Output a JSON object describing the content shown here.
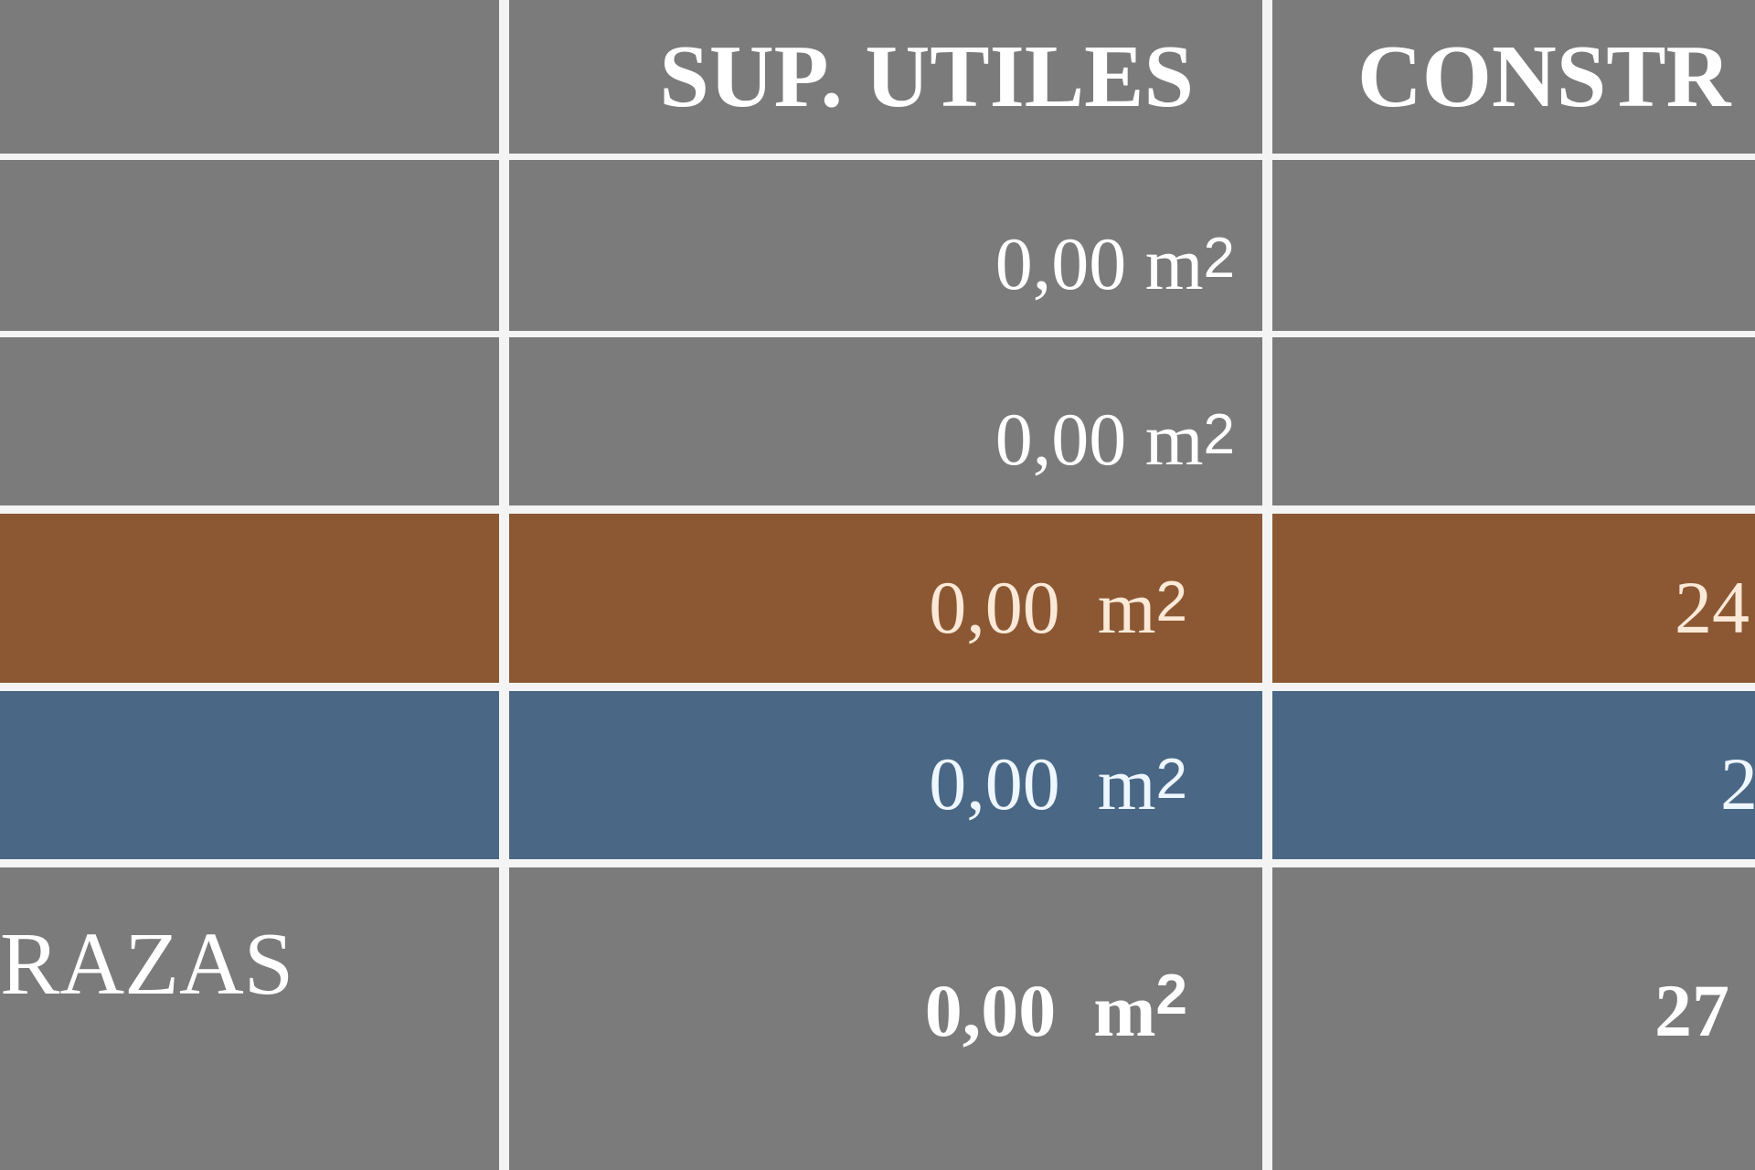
{
  "colors": {
    "gray": "#7b7b7b",
    "brown": "#8c5833",
    "blue": "#4a6885"
  },
  "table": {
    "headers": [
      "",
      "SUP. UTILES",
      "CONSTR"
    ],
    "rows": [
      {
        "label": "",
        "util": "0,00 m",
        "util_sup": "2",
        "constr": ""
      },
      {
        "label": "",
        "util": "0,00 m",
        "util_sup": "2",
        "constr": ""
      },
      {
        "label": "",
        "util": "0,00  m",
        "util_sup": "2",
        "constr": "24"
      },
      {
        "label": "",
        "util": "0,00  m",
        "util_sup": "2",
        "constr": "2"
      },
      {
        "label": "RAZAS",
        "util": "0,00  m",
        "util_sup": "2",
        "constr": "27"
      }
    ]
  }
}
